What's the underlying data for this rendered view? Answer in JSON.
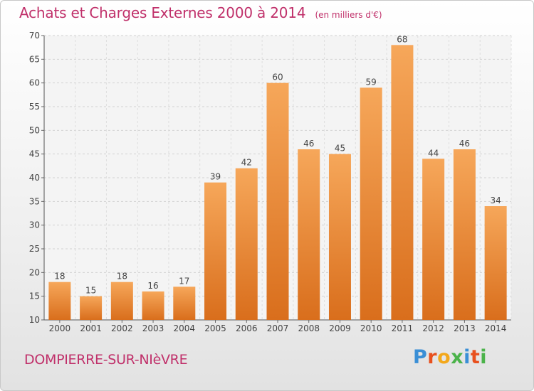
{
  "header": {
    "title": "Achats et Charges Externes 2000 à 2014",
    "subtitle": "(en milliers d'€)"
  },
  "footer": {
    "commune": "DOMPIERRE-SUR-NIèVRE",
    "logo": [
      "P",
      "r",
      "o",
      "x",
      "i",
      "t",
      "i"
    ]
  },
  "colors": {
    "bar_top": "#f6a75a",
    "bar_bottom": "#d96e1c",
    "accent": "#c0306a"
  },
  "chart_data": {
    "type": "bar",
    "categories": [
      "2000",
      "2001",
      "2002",
      "2003",
      "2004",
      "2005",
      "2006",
      "2007",
      "2008",
      "2009",
      "2010",
      "2011",
      "2012",
      "2013",
      "2014"
    ],
    "values": [
      18,
      15,
      18,
      16,
      17,
      39,
      42,
      60,
      46,
      45,
      59,
      68,
      44,
      46,
      34
    ],
    "title": "Achats et Charges Externes 2000 à 2014",
    "ylim": [
      10,
      70
    ],
    "yticks": [
      10,
      15,
      20,
      25,
      30,
      35,
      40,
      45,
      50,
      55,
      60,
      65,
      70
    ],
    "grid": true
  }
}
